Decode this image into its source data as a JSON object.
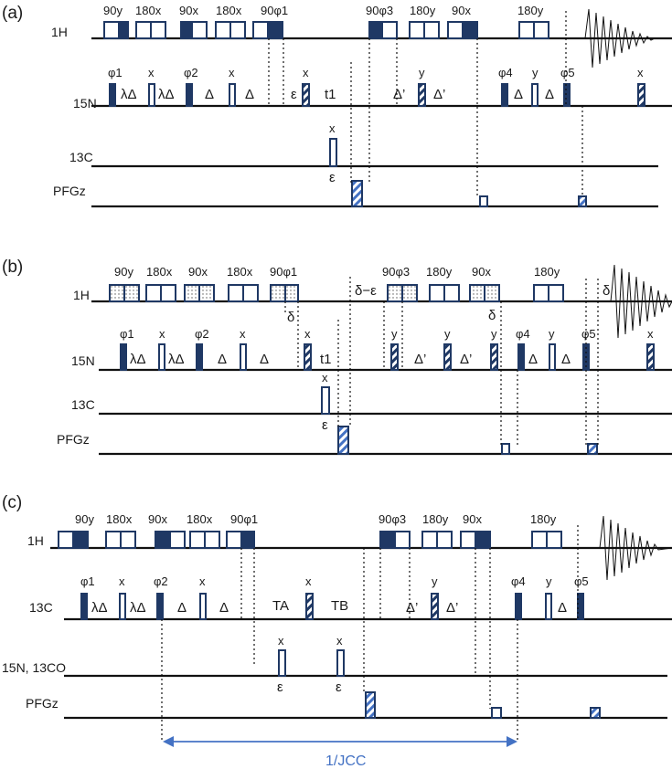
{
  "colors": {
    "pulse_dark": "#1f3864",
    "accent_blue": "#4472c4",
    "line": "#111111"
  },
  "panel_a": {
    "label": "(a)",
    "h_label": "1H",
    "n_label": "15N",
    "c_label": "13C",
    "g_label": "PFGz",
    "h_phases": [
      "90y",
      "180x",
      "90x",
      "180x",
      "90φ1",
      "90φ3",
      "180y",
      "90x",
      "180y"
    ],
    "n_phases": [
      "φ1",
      "x",
      "φ2",
      "x",
      "x",
      "y",
      "φ4",
      "y",
      "φ5",
      "x"
    ],
    "n_delays": [
      "λΔ",
      "λΔ",
      "Δ",
      "Δ",
      "ε",
      "t1",
      "Δ’",
      "Δ’",
      "Δ",
      "Δ"
    ],
    "c_phase": "x",
    "c_eps": "ε"
  },
  "panel_b": {
    "label": "(b)",
    "h_label": "1H",
    "n_label": "15N",
    "c_label": "13C",
    "g_label": "PFGz",
    "h_phases": [
      "90y",
      "180x",
      "90x",
      "180x",
      "90φ1",
      "90φ3",
      "180y",
      "90x",
      "180y"
    ],
    "n_phases": [
      "φ1",
      "x",
      "φ2",
      "x",
      "x",
      "y",
      "y",
      "y",
      "φ4",
      "y",
      "φ5",
      "x"
    ],
    "n_delays": [
      "λΔ",
      "λΔ",
      "Δ",
      "Δ",
      "t1",
      "Δ’",
      "Δ’",
      "Δ",
      "Δ"
    ],
    "deltas": [
      "δ",
      "δ−ε",
      "δ",
      "δ"
    ],
    "c_phase": "x",
    "c_eps": "ε"
  },
  "panel_c": {
    "label": "(c)",
    "h_label": "1H",
    "c_label": "13C",
    "n_label": "15N, 13CO",
    "g_label": "PFGz",
    "h_phases": [
      "90y",
      "180x",
      "90x",
      "180x",
      "90φ1",
      "90φ3",
      "180y",
      "90x",
      "180y"
    ],
    "c_phases": [
      "φ1",
      "x",
      "φ2",
      "x",
      "x",
      "y",
      "φ4",
      "y",
      "φ5"
    ],
    "c_delays": [
      "λΔ",
      "λΔ",
      "Δ",
      "Δ",
      "TA",
      "TB",
      "Δ’",
      "Δ’",
      "Δ"
    ],
    "n_phases": [
      "x",
      "x"
    ],
    "n_eps": [
      "ε",
      "ε"
    ],
    "jcc": "1/JCC"
  }
}
